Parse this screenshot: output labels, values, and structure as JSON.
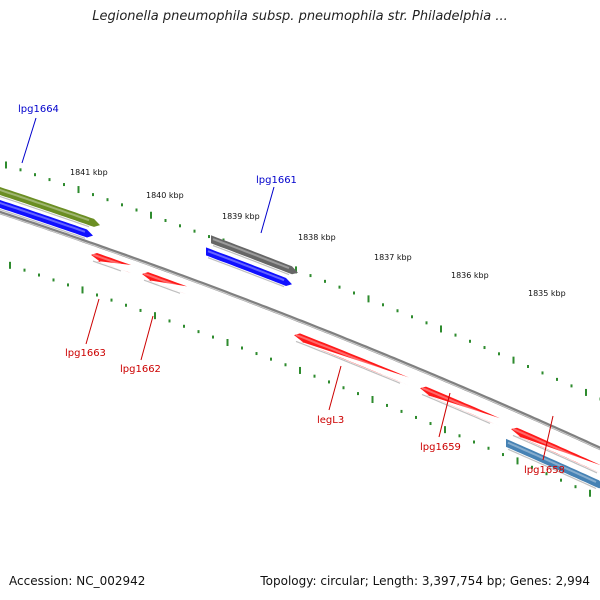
{
  "title": "Legionella pneumophila subsp. pneumophila str. Philadelphia ...",
  "footer": {
    "accession": "Accession: NC_002942",
    "summary": "Topology: circular; Length: 3,397,754 bp; Genes: 2,994"
  },
  "colors": {
    "backbone": "#808080",
    "tick": "#2e8b2e",
    "label_forward": "#0000cc",
    "label_reverse": "#cc0000",
    "red_gene": "#ff1a1a",
    "blue_gene": "#1010ff",
    "olive_gene": "#6b8e23",
    "gray_gene": "#666666",
    "steelblue_gene": "#4682b4"
  },
  "kbp_markers": [
    "1841 kbp",
    "1840 kbp",
    "1839 kbp",
    "1838 kbp",
    "1837 kbp",
    "1836 kbp",
    "1835 kbp"
  ],
  "genes": [
    {
      "id": "g-olive",
      "color": "olive_gene"
    },
    {
      "id": "g-blue-left",
      "color": "blue_gene"
    },
    {
      "id": "g-gray",
      "color": "gray_gene"
    },
    {
      "id": "g-blue-mid",
      "color": "blue_gene"
    },
    {
      "id": "g-red-1663",
      "color": "red_gene"
    },
    {
      "id": "g-red-1662",
      "color": "red_gene"
    },
    {
      "id": "g-red-legL3",
      "color": "red_gene"
    },
    {
      "id": "g-red-1659",
      "color": "red_gene"
    },
    {
      "id": "g-red-1658",
      "color": "red_gene"
    },
    {
      "id": "g-steelblue",
      "color": "steelblue_gene"
    }
  ],
  "gene_labels": [
    {
      "text": "lpg1664",
      "strand": "forward"
    },
    {
      "text": "lpg1661",
      "strand": "forward"
    },
    {
      "text": "lpg1663",
      "strand": "reverse"
    },
    {
      "text": "lpg1662",
      "strand": "reverse"
    },
    {
      "text": "legL3",
      "strand": "reverse"
    },
    {
      "text": "lpg1659",
      "strand": "reverse"
    },
    {
      "text": "lpg1658",
      "strand": "reverse"
    }
  ]
}
